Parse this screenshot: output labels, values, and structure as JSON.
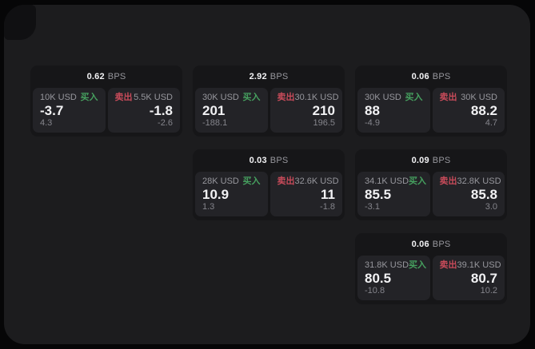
{
  "labels": {
    "buy": "买入",
    "sell": "卖出",
    "bps_unit": "BPS"
  },
  "colors": {
    "page-bg": "#060607",
    "panel-bg": "#1c1c1e",
    "card-bg": "#161618",
    "subcard-bg": "#232327",
    "text-primary": "#f2f2f4",
    "text-muted": "#97979d",
    "text-dim": "#84848b",
    "buy-green": "#46a05f",
    "sell-red": "#c84b5a"
  },
  "cards": [
    {
      "bps": "0.62",
      "buy": {
        "size": "10K USD",
        "value": "-3.7",
        "change": "4.3"
      },
      "sell": {
        "size": "5.5K USD",
        "value": "-1.8",
        "change": "-2.6"
      }
    },
    {
      "bps": "2.92",
      "buy": {
        "size": "30K USD",
        "value": "201",
        "change": "-188.1"
      },
      "sell": {
        "size": "30.1K USD",
        "value": "210",
        "change": "196.5"
      }
    },
    {
      "bps": "0.06",
      "buy": {
        "size": "30K USD",
        "value": "88",
        "change": "-4.9"
      },
      "sell": {
        "size": "30K USD",
        "value": "88.2",
        "change": "4.7"
      }
    },
    {
      "bps": "0.03",
      "buy": {
        "size": "28K USD",
        "value": "10.9",
        "change": "1.3"
      },
      "sell": {
        "size": "32.6K USD",
        "value": "11",
        "change": "-1.8"
      }
    },
    {
      "bps": "0.09",
      "buy": {
        "size": "34.1K USD",
        "value": "85.5",
        "change": "-3.1"
      },
      "sell": {
        "size": "32.8K USD",
        "value": "85.8",
        "change": "3.0"
      }
    },
    {
      "bps": "0.06",
      "buy": {
        "size": "31.8K USD",
        "value": "80.5",
        "change": "-10.8"
      },
      "sell": {
        "size": "39.1K USD",
        "value": "80.7",
        "change": "10.2"
      }
    }
  ]
}
